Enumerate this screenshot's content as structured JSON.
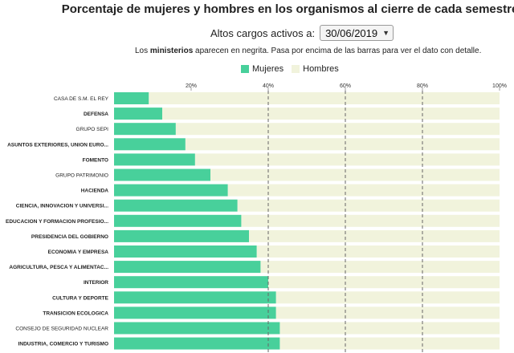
{
  "title": "Porcentaje de mujeres y hombres en los organismos al cierre de cada semestre",
  "selector": {
    "label": "Altos cargos activos a:",
    "value": "30/06/2019"
  },
  "note": {
    "prefix": "Los ",
    "bold": "ministerios",
    "suffix": " aparecen en negrita. Pasa por encima de las barras para ver el dato con detalle."
  },
  "legend": {
    "women": "Mujeres",
    "men": "Hombres"
  },
  "colors": {
    "women": "#48d09b",
    "men": "#f1f3dc",
    "gridline": "#666666"
  },
  "chart_data": {
    "type": "bar",
    "orientation": "horizontal",
    "stacked": true,
    "xlim": [
      0,
      100
    ],
    "x_ticks": [
      "20%",
      "40%",
      "60%",
      "80%",
      "100%"
    ],
    "x_tick_values": [
      20,
      40,
      60,
      80,
      100
    ],
    "dashed_gridlines_at": [
      40,
      60,
      80
    ],
    "categories": [
      {
        "label": "CASA DE S.M. EL REY",
        "ministry": false
      },
      {
        "label": "DEFENSA",
        "ministry": true
      },
      {
        "label": "GRUPO SEPI",
        "ministry": false
      },
      {
        "label": "ASUNTOS EXTERIORES, UNION EURO...",
        "ministry": true
      },
      {
        "label": "FOMENTO",
        "ministry": true
      },
      {
        "label": "GRUPO PATRIMONIO",
        "ministry": false
      },
      {
        "label": "HACIENDA",
        "ministry": true
      },
      {
        "label": "CIENCIA, INNOVACION Y UNIVERSI...",
        "ministry": true
      },
      {
        "label": "EDUCACION Y FORMACION PROFESIO...",
        "ministry": true
      },
      {
        "label": "PRESIDENCIA DEL GOBIERNO",
        "ministry": true
      },
      {
        "label": "ECONOMIA Y EMPRESA",
        "ministry": true
      },
      {
        "label": "AGRICULTURA, PESCA Y ALIMENTAC...",
        "ministry": true
      },
      {
        "label": "INTERIOR",
        "ministry": true
      },
      {
        "label": "CULTURA Y DEPORTE",
        "ministry": true
      },
      {
        "label": "TRANSICION ECOLOGICA",
        "ministry": true
      },
      {
        "label": "CONSEJO DE SEGURIDAD NUCLEAR",
        "ministry": false
      },
      {
        "label": "INDUSTRIA, COMERCIO Y TURISMO",
        "ministry": true
      }
    ],
    "series": [
      {
        "name": "Mujeres",
        "values": [
          9,
          12.5,
          16,
          18.5,
          21,
          25,
          29.5,
          32,
          33,
          35,
          37,
          38,
          40,
          42,
          42,
          43,
          43
        ]
      },
      {
        "name": "Hombres",
        "values": [
          91,
          87.5,
          84,
          81.5,
          79,
          75,
          70.5,
          68,
          67,
          65,
          63,
          62,
          60,
          58,
          58,
          57,
          57
        ]
      }
    ]
  }
}
